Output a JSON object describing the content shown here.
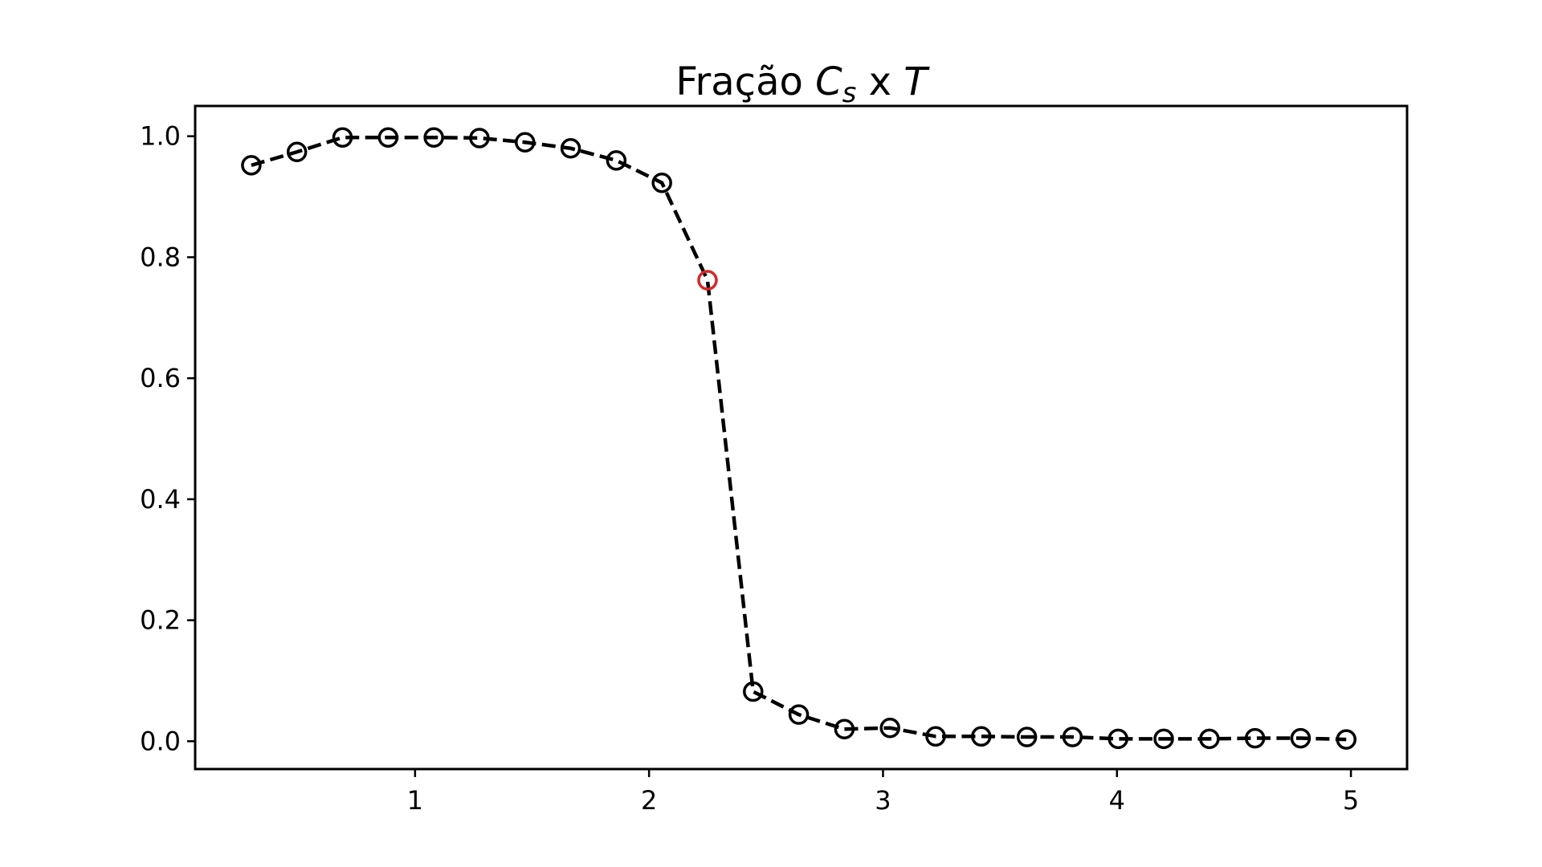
{
  "chart_data": {
    "type": "line",
    "title": {
      "prefix": "Fração ",
      "symbol": "C",
      "subscript": "s",
      "middle": " x ",
      "variable": "T"
    },
    "xlabel": "",
    "ylabel": "",
    "xlim": [
      0.06,
      5.24
    ],
    "ylim": [
      -0.046,
      1.05
    ],
    "xticks": [
      {
        "value": 1,
        "label": "1"
      },
      {
        "value": 2,
        "label": "2"
      },
      {
        "value": 3,
        "label": "3"
      },
      {
        "value": 4,
        "label": "4"
      },
      {
        "value": 5,
        "label": "5"
      }
    ],
    "yticks": [
      {
        "value": 0.0,
        "label": "0.0"
      },
      {
        "value": 0.2,
        "label": "0.2"
      },
      {
        "value": 0.4,
        "label": "0.4"
      },
      {
        "value": 0.6,
        "label": "0.6"
      },
      {
        "value": 0.8,
        "label": "0.8"
      },
      {
        "value": 1.0,
        "label": "1.0"
      }
    ],
    "grid": false,
    "line_style": "dashed",
    "marker": "open-circle",
    "line_color": "#000000",
    "marker_color": "#000000",
    "highlight_color": "#d62728",
    "highlight_index": 10,
    "series": [
      {
        "x": [
          0.3,
          0.495,
          0.69,
          0.885,
          1.08,
          1.275,
          1.47,
          1.665,
          1.86,
          2.055,
          2.25,
          2.445,
          2.64,
          2.835,
          3.03,
          3.225,
          3.42,
          3.615,
          3.81,
          4.005,
          4.2,
          4.395,
          4.59,
          4.785,
          4.98
        ],
        "y": [
          0.952,
          0.974,
          0.998,
          0.998,
          0.998,
          0.997,
          0.99,
          0.98,
          0.96,
          0.923,
          0.762,
          0.082,
          0.044,
          0.02,
          0.022,
          0.008,
          0.008,
          0.007,
          0.007,
          0.004,
          0.004,
          0.004,
          0.005,
          0.005,
          0.003
        ]
      }
    ]
  }
}
